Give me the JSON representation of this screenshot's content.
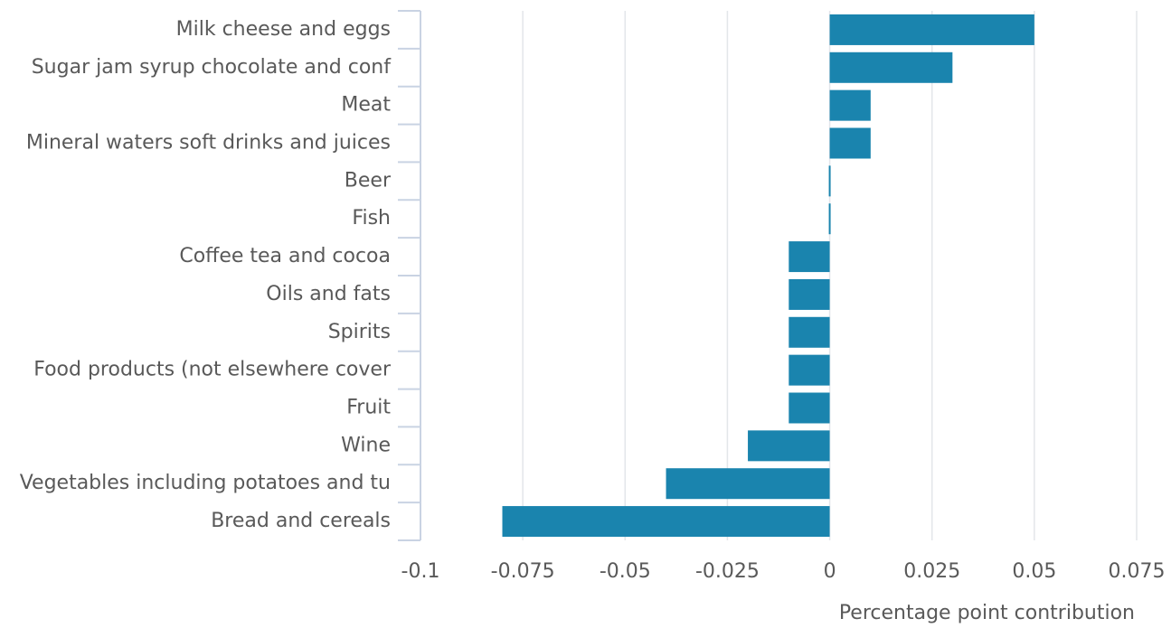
{
  "chart_data": {
    "type": "bar",
    "orientation": "horizontal",
    "categories": [
      "Milk cheese and eggs",
      "Sugar jam syrup chocolate and conf",
      "Meat",
      "Mineral waters soft drinks and juices",
      "Beer",
      "Fish",
      "Coffee tea and cocoa",
      "Oils and fats",
      "Spirits",
      "Food products (not elsewhere cover",
      "Fruit",
      "Wine",
      "Vegetables including potatoes and tu",
      "Bread and cereals"
    ],
    "values": [
      0.05,
      0.03,
      0.01,
      0.01,
      0,
      0,
      -0.01,
      -0.01,
      -0.01,
      -0.01,
      -0.01,
      -0.02,
      -0.04,
      -0.08
    ],
    "color": "#1a84ae",
    "xlabel": "Percentage point contribution",
    "xlim": [
      -0.1,
      0.075
    ],
    "xticks": [
      -0.1,
      -0.075,
      -0.05,
      -0.025,
      0,
      0.025,
      0.05,
      0.075
    ],
    "grid": true
  }
}
